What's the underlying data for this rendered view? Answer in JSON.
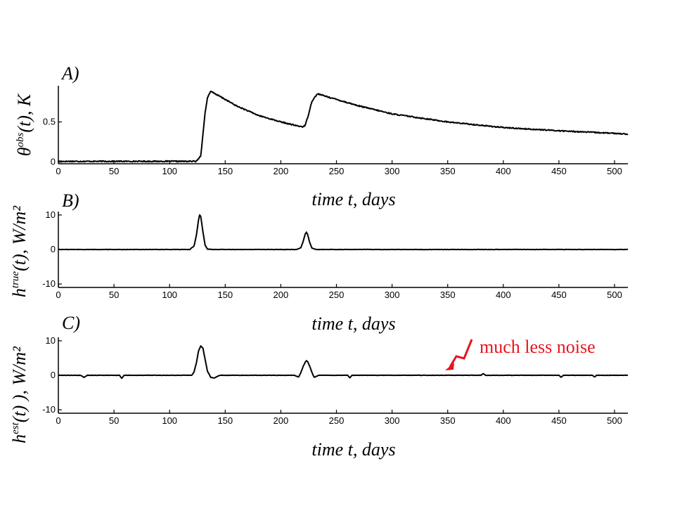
{
  "annotation": {
    "text": "much less noise",
    "color": "#e8141e"
  },
  "chart_data": [
    {
      "panel": "A)",
      "type": "line",
      "ylabel_base": "θ",
      "ylabel_sup": "obs",
      "ylabel_rest": "(t), K",
      "xlabel": "time  t, days",
      "xlim": [
        0,
        512
      ],
      "ylim": [
        -0.02,
        0.95
      ],
      "xticks": [
        0,
        50,
        100,
        150,
        200,
        250,
        300,
        350,
        400,
        450,
        500
      ],
      "yticks": [
        0,
        0.5
      ],
      "ytick_labels": [
        "0",
        "0.5"
      ],
      "series": [
        {
          "color": "#000000",
          "x": [
            0,
            60,
            120,
            124,
            128,
            130,
            132,
            134,
            137,
            145,
            160,
            180,
            200,
            215,
            220,
            222,
            225,
            228,
            233,
            245,
            270,
            300,
            350,
            400,
            450,
            512
          ],
          "y": [
            0.01,
            0.01,
            0.01,
            0.01,
            0.08,
            0.35,
            0.62,
            0.8,
            0.88,
            0.82,
            0.7,
            0.58,
            0.5,
            0.45,
            0.44,
            0.46,
            0.6,
            0.76,
            0.85,
            0.8,
            0.7,
            0.6,
            0.5,
            0.43,
            0.39,
            0.35
          ]
        }
      ]
    },
    {
      "panel": "B)",
      "type": "line",
      "ylabel_base": "h",
      "ylabel_sup": "true",
      "ylabel_rest": "(t),  W/m²",
      "xlabel": "time  t, days",
      "xlim": [
        0,
        512
      ],
      "ylim": [
        -11,
        11
      ],
      "xticks": [
        0,
        50,
        100,
        150,
        200,
        250,
        300,
        350,
        400,
        450,
        500
      ],
      "yticks": [
        -10,
        0,
        10
      ],
      "ytick_labels": [
        "-10",
        "0",
        "10"
      ],
      "series": [
        {
          "color": "#000000",
          "x": [
            0,
            118,
            122,
            124,
            126,
            127,
            128,
            130,
            132,
            134,
            140,
            214,
            218,
            220,
            222,
            223,
            224,
            226,
            228,
            232,
            512
          ],
          "y": [
            0,
            0,
            1.0,
            4.0,
            8.5,
            10.0,
            9.6,
            5.0,
            1.2,
            0.1,
            0,
            0,
            0.5,
            2.3,
            4.5,
            5.0,
            4.4,
            2.0,
            0.4,
            0,
            0
          ]
        }
      ]
    },
    {
      "panel": "C)",
      "type": "line",
      "ylabel_base": "h",
      "ylabel_sup": "est",
      "ylabel_rest": "(t) ),  W/m²",
      "xlabel": "time  t, days",
      "xlim": [
        0,
        512
      ],
      "ylim": [
        -11,
        11
      ],
      "xticks": [
        0,
        50,
        100,
        150,
        200,
        250,
        300,
        350,
        400,
        450,
        500
      ],
      "yticks": [
        -10,
        0,
        10
      ],
      "ytick_labels": [
        "-10",
        "0",
        "10"
      ],
      "series": [
        {
          "color": "#000000",
          "x": [
            0,
            20,
            23,
            26,
            55,
            57,
            59,
            120,
            122,
            124,
            126,
            128,
            130,
            132,
            134,
            137,
            140,
            145,
            160,
            212,
            216,
            218,
            220,
            222,
            223,
            224,
            226,
            228,
            230,
            234,
            260,
            262,
            264,
            300,
            350,
            380,
            382,
            384,
            450,
            452,
            454,
            480,
            482,
            484,
            512
          ],
          "y": [
            0,
            0,
            -0.6,
            0,
            0,
            -0.9,
            0,
            0,
            1.0,
            3.5,
            7.0,
            8.5,
            7.8,
            4.5,
            1.2,
            -0.6,
            -0.8,
            0,
            0,
            0,
            -0.5,
            0.8,
            2.5,
            3.8,
            4.2,
            4.0,
            2.6,
            0.8,
            -0.6,
            0,
            0,
            -0.7,
            0,
            0,
            0,
            0,
            0.5,
            0,
            0,
            -0.6,
            0,
            0,
            -0.5,
            0,
            0
          ]
        }
      ]
    }
  ]
}
